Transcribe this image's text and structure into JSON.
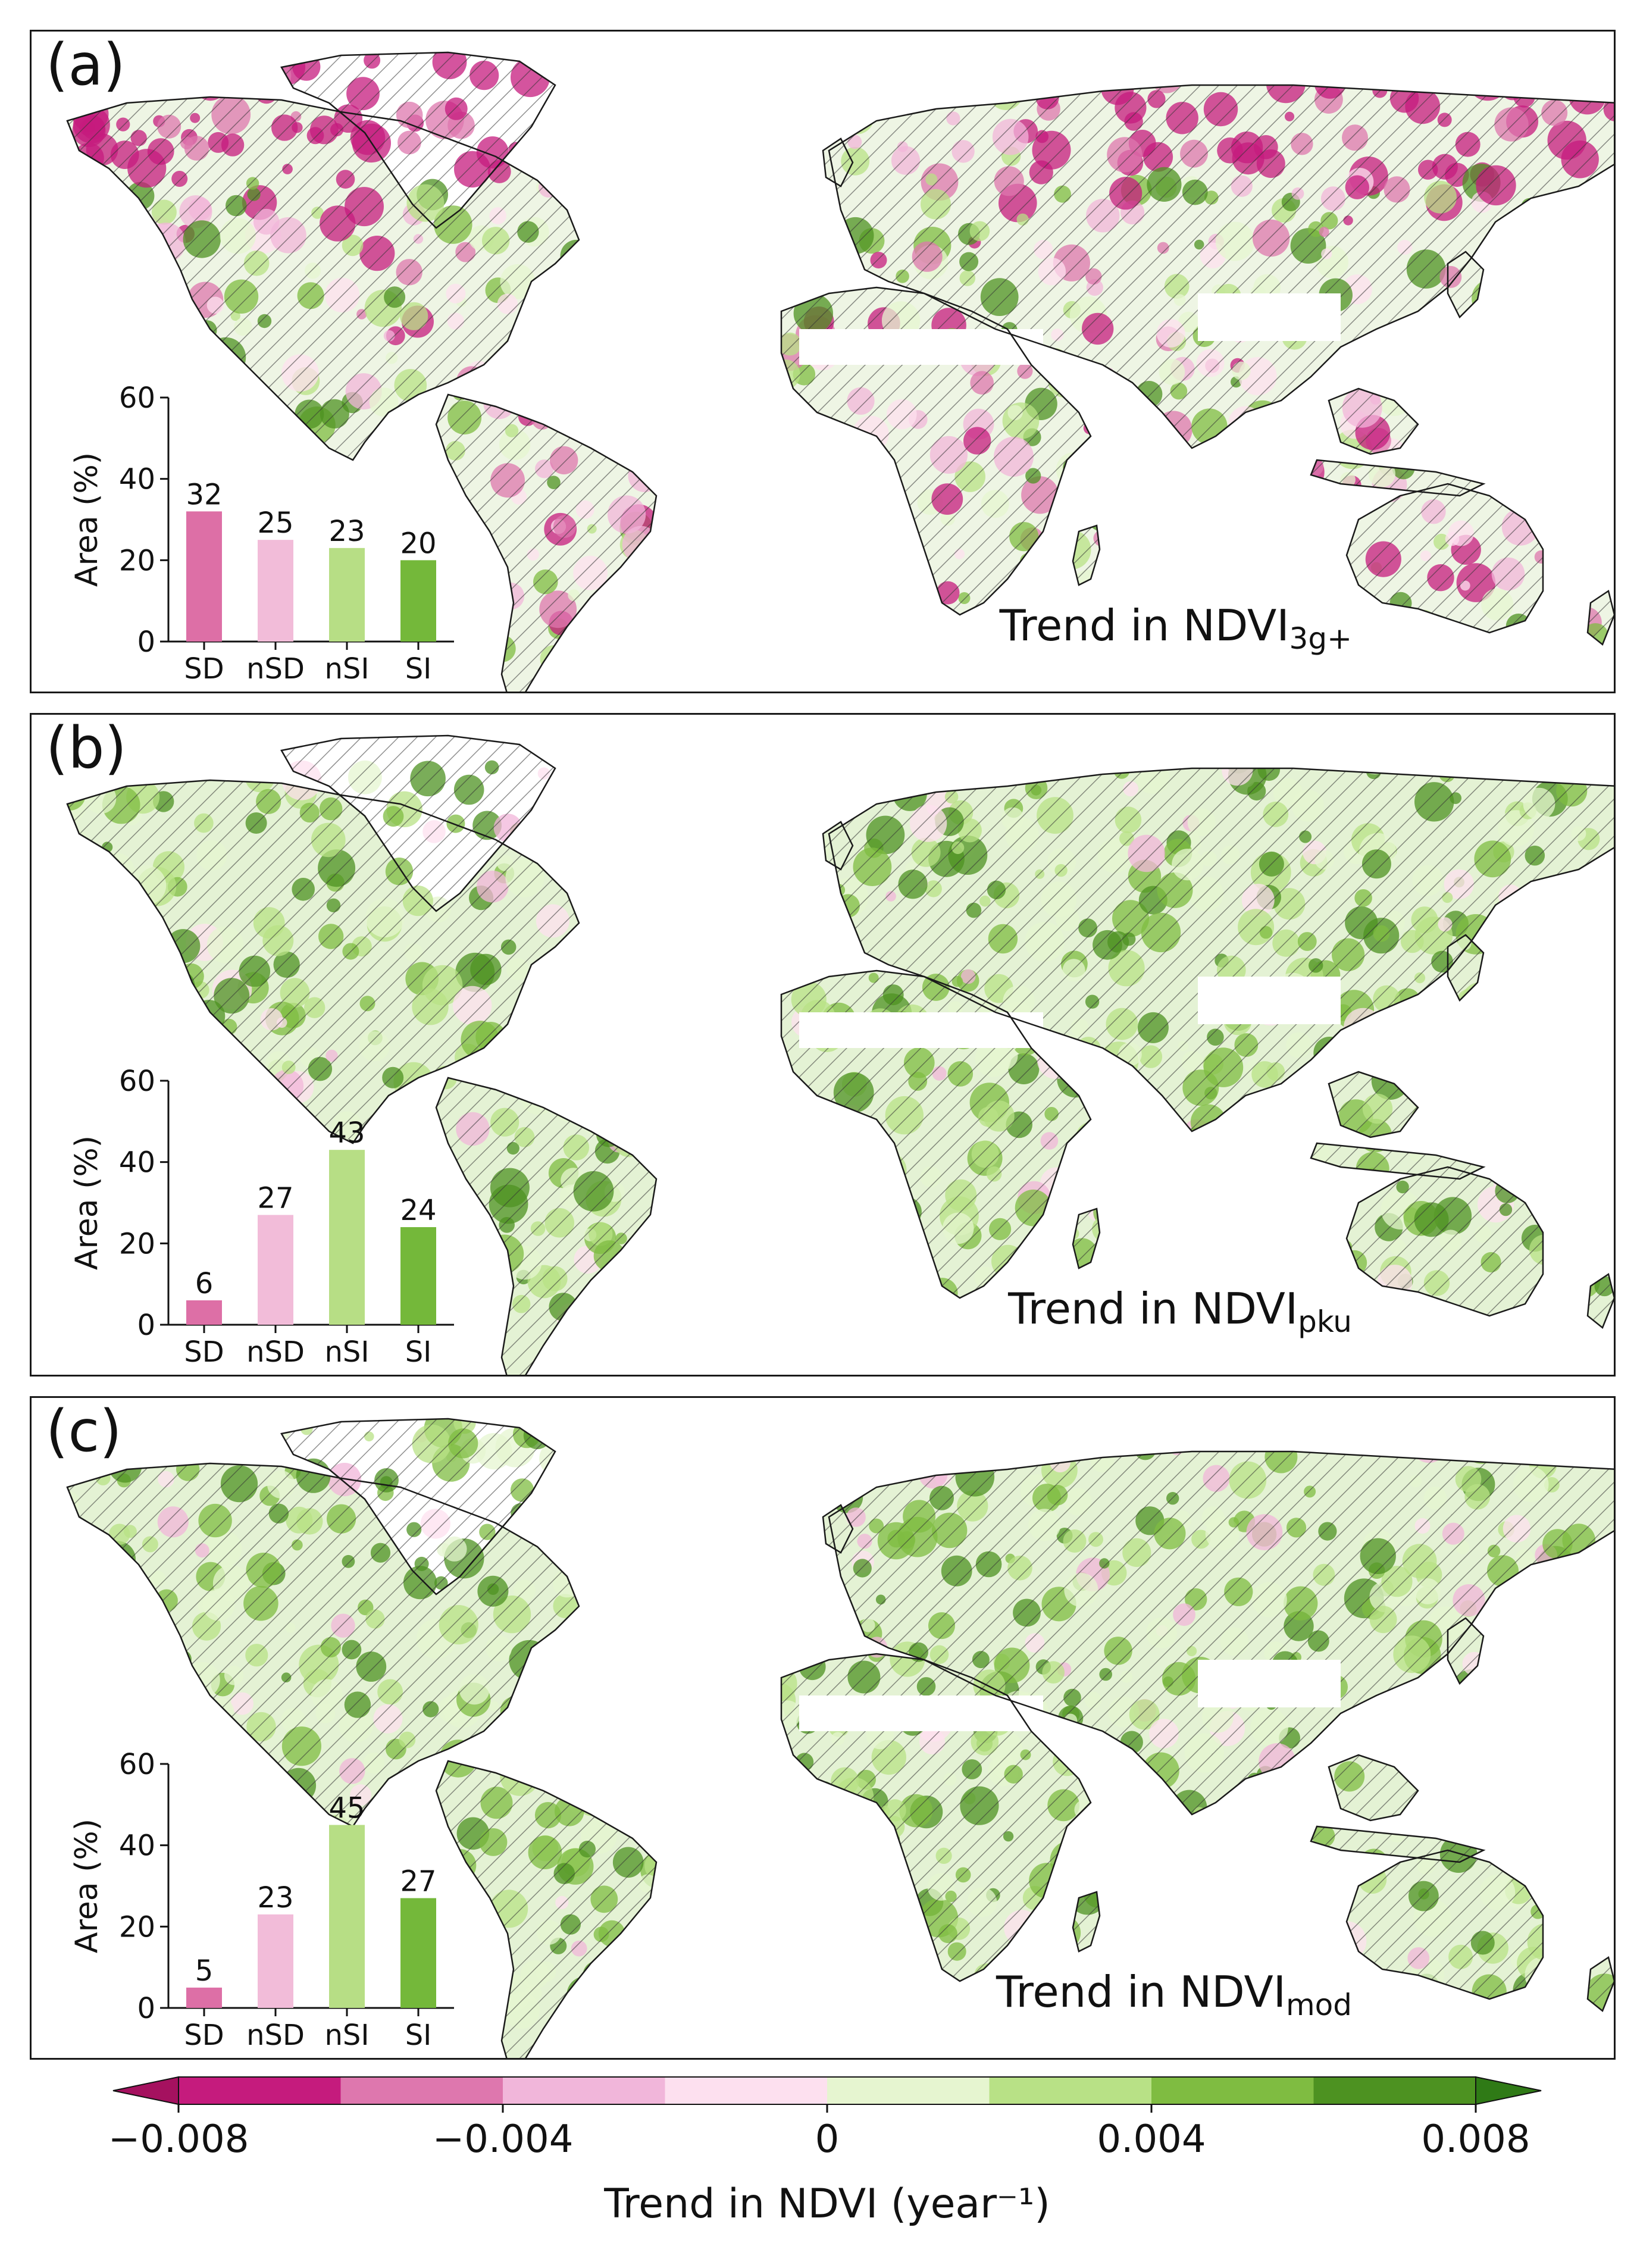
{
  "panels": [
    {
      "label": "(a)",
      "title_main": "Trend in NDVI",
      "title_sub": "3g+",
      "map_style": "browning"
    },
    {
      "label": "(b)",
      "title_main": "Trend in NDVI",
      "title_sub": "pku",
      "map_style": "greening"
    },
    {
      "label": "(c)",
      "title_main": "Trend in NDVI",
      "title_sub": "mod",
      "map_style": "greening"
    }
  ],
  "chart_data": [
    {
      "type": "bar",
      "panel": "(a)",
      "categories": [
        "SD",
        "nSD",
        "nSI",
        "SI"
      ],
      "values": [
        32,
        25,
        23,
        20
      ],
      "ylabel": "Area (%)",
      "ylim": [
        0,
        60
      ],
      "yticks": [
        0,
        20,
        40,
        60
      ],
      "colors": [
        "#dd6fa6",
        "#f2bcd9",
        "#b7de85",
        "#74b83a"
      ]
    },
    {
      "type": "bar",
      "panel": "(b)",
      "categories": [
        "SD",
        "nSD",
        "nSI",
        "SI"
      ],
      "values": [
        6,
        27,
        43,
        24
      ],
      "ylabel": "Area (%)",
      "ylim": [
        0,
        60
      ],
      "yticks": [
        0,
        20,
        40,
        60
      ],
      "colors": [
        "#dd6fa6",
        "#f2bcd9",
        "#b7de85",
        "#74b83a"
      ]
    },
    {
      "type": "bar",
      "panel": "(c)",
      "categories": [
        "SD",
        "nSD",
        "nSI",
        "SI"
      ],
      "values": [
        5,
        23,
        45,
        27
      ],
      "ylabel": "Area (%)",
      "ylim": [
        0,
        60
      ],
      "yticks": [
        0,
        20,
        40,
        60
      ],
      "colors": [
        "#dd6fa6",
        "#f2bcd9",
        "#b7de85",
        "#74b83a"
      ]
    }
  ],
  "colorbar": {
    "label": "Trend in NDVI (year⁻¹)",
    "range": [
      -0.008,
      0.008
    ],
    "boundaries": [
      -0.008,
      -0.006,
      -0.004,
      -0.002,
      0,
      0.002,
      0.004,
      0.006,
      0.008
    ],
    "ticks": [
      "−0.008",
      "−0.004",
      "0",
      "0.004",
      "0.008"
    ],
    "tick_values": [
      -0.008,
      -0.004,
      0,
      0.004,
      0.008
    ],
    "colors": [
      "#c51b7d",
      "#de77ae",
      "#f1b6da",
      "#fde0ef",
      "#e6f5d0",
      "#b8e186",
      "#7fbc41",
      "#4d9221"
    ],
    "extend_low": "#a5115f",
    "extend_high": "#2f7a16"
  }
}
